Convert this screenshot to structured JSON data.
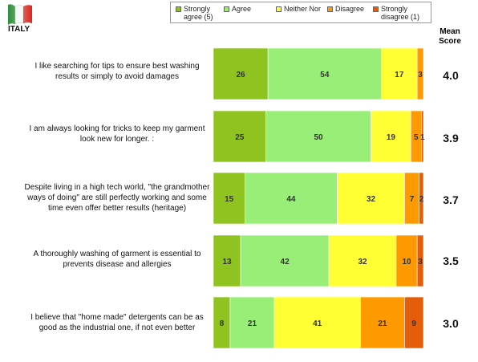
{
  "header": {
    "country": "ITALY",
    "mean_header_line1": "Mean",
    "mean_header_line2": "Score"
  },
  "colors": {
    "strongly_agree": "#8fc31f",
    "agree": "#99ee77",
    "neither_nor": "#ffff33",
    "disagree": "#ff9900",
    "strongly_disagree": "#e35d0b",
    "flag_green": "#2e8b3a",
    "flag_red": "#d9261c"
  },
  "legend": [
    {
      "label_line1": "Strongly",
      "label_line2": "agree (5)",
      "color": "#8fc31f"
    },
    {
      "label_line1": "Agree",
      "label_line2": "",
      "color": "#99ee77"
    },
    {
      "label_line1": "Neither Nor",
      "label_line2": "",
      "color": "#ffff33"
    },
    {
      "label_line1": "Disagree",
      "label_line2": "",
      "color": "#ff9900"
    },
    {
      "label_line1": "Strongly",
      "label_line2": "disagree (1)",
      "color": "#e35d0b"
    }
  ],
  "chart_data": {
    "type": "bar",
    "orientation": "horizontal",
    "stacked": true,
    "xlim": [
      0,
      100
    ],
    "categories": [
      "I like searching for tips to ensure best washing results or simply to avoid  damages",
      "I am always looking for  tricks to keep my garment look new for longer. :",
      "Despite living in a high tech world, \"the grandmother ways of doing\"  are still perfectly working and some time even offer better results (heritage)",
      "A thoroughly  washing of garment is essential to prevents disease and allergies",
      "I believe that \"home made\" detergents can be as good as the industrial one, if not even better"
    ],
    "series": [
      {
        "name": "Strongly agree (5)",
        "values": [
          26,
          25,
          15,
          13,
          8
        ]
      },
      {
        "name": "Agree",
        "values": [
          54,
          50,
          44,
          42,
          21
        ]
      },
      {
        "name": "Neither Nor",
        "values": [
          17,
          19,
          32,
          32,
          41
        ]
      },
      {
        "name": "Disagree",
        "values": [
          3,
          5,
          7,
          10,
          21
        ]
      },
      {
        "name": "Strongly disagree (1)",
        "values": [
          0,
          1,
          2,
          3,
          9
        ]
      }
    ],
    "data_labels": [
      [
        "26",
        "54",
        "17",
        "3",
        ""
      ],
      [
        "25",
        "50",
        "19",
        "5",
        "1"
      ],
      [
        "15",
        "44",
        "32",
        "7",
        "2"
      ],
      [
        "13",
        "42",
        "32",
        "10",
        "3"
      ],
      [
        "8",
        "21",
        "41",
        "21",
        "9"
      ]
    ],
    "mean_scores": [
      "4.0",
      "3.9",
      "3.7",
      "3.5",
      "3.0"
    ]
  }
}
